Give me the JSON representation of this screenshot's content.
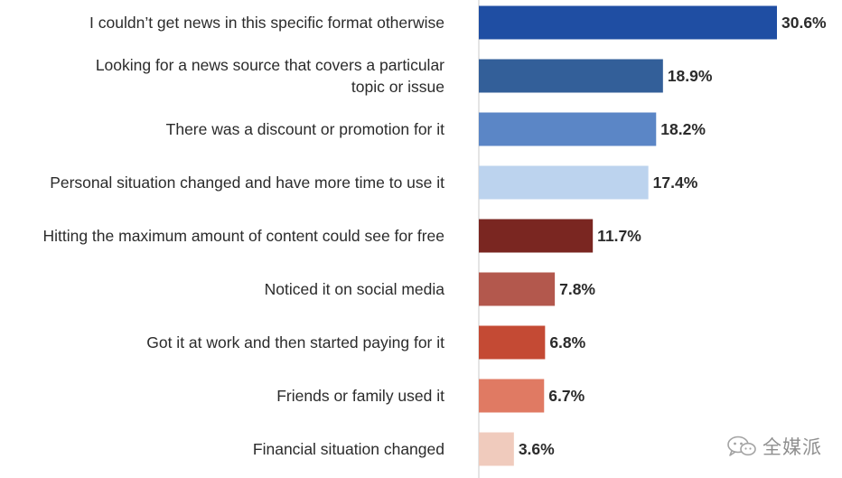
{
  "chart_data": {
    "type": "bar",
    "orientation": "horizontal",
    "title": "",
    "xlabel": "",
    "ylabel": "",
    "xlim": [
      0,
      31
    ],
    "grid": false,
    "categories": [
      [
        "I couldn’t get news in this specific format otherwise"
      ],
      [
        "Looking for a news source that covers a particular",
        "topic or issue"
      ],
      [
        "There was a discount or promotion for it"
      ],
      [
        "Personal situation changed and have more time to use it"
      ],
      [
        "Hitting the maximum amount of content could see for free"
      ],
      [
        "Noticed it on social media"
      ],
      [
        "Got it at work and then started paying for it"
      ],
      [
        "Friends or family used it"
      ],
      [
        "Financial situation changed"
      ]
    ],
    "values": [
      30.6,
      18.9,
      18.2,
      17.4,
      11.7,
      7.8,
      6.8,
      6.7,
      3.6
    ],
    "value_labels": [
      "30.6%",
      "18.9%",
      "18.2%",
      "17.4%",
      "11.7%",
      "7.8%",
      "6.8%",
      "6.7%",
      "3.6%"
    ],
    "colors": [
      "#1f4ea3",
      "#335f99",
      "#5b86c6",
      "#bcd3ee",
      "#7a2621",
      "#b3584d",
      "#c44a34",
      "#e07a63",
      "#f0cbbd"
    ]
  },
  "style": {
    "axis_color": "#c8c8c8",
    "text_color": "#2b2b2b"
  },
  "watermark": {
    "text": "全媒派",
    "icon": "wechat-icon"
  }
}
